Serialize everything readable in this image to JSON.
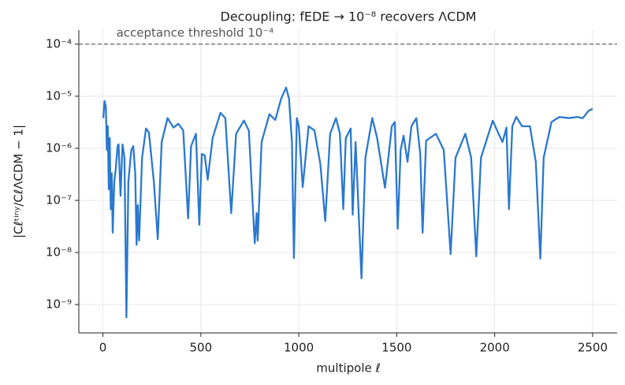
{
  "chart_data": {
    "type": "line",
    "title": "Decoupling: fEDE → 10⁻⁸ recovers ΛCDM",
    "xlabel": "multipole ℓ",
    "ylabel": "|Cℓᵗⁱⁿʸ/CℓΛCDM − 1|",
    "color": "#2a78d0",
    "log_y": true,
    "grid": true,
    "threshold": {
      "value": 0.0001,
      "label": "acceptance threshold 10⁻⁴",
      "color": "#555555"
    },
    "xlim": [
      -123,
      2625
    ],
    "ylim": [
      2.85e-10,
      0.000187
    ],
    "xticks": [
      0,
      500,
      1000,
      1500,
      2000,
      2500
    ],
    "yticks": [
      {
        "value": 1e-09,
        "label": "10⁻⁹"
      },
      {
        "value": 1e-08,
        "label": "10⁻⁸"
      },
      {
        "value": 1e-07,
        "label": "10⁻⁷"
      },
      {
        "value": 1e-06,
        "label": "10⁻⁶"
      },
      {
        "value": 1e-05,
        "label": "10⁻⁵"
      },
      {
        "value": 0.0001,
        "label": "10⁻⁴"
      }
    ],
    "x": [
      2,
      8,
      15,
      20,
      25,
      30,
      35,
      40,
      45,
      50,
      58,
      65,
      75,
      80,
      90,
      100,
      110,
      120,
      130,
      145,
      155,
      165,
      172,
      178,
      185,
      200,
      220,
      235,
      260,
      280,
      300,
      330,
      360,
      385,
      410,
      435,
      450,
      475,
      492,
      505,
      520,
      535,
      560,
      600,
      625,
      655,
      680,
      720,
      745,
      775,
      785,
      790,
      810,
      850,
      880,
      910,
      935,
      950,
      965,
      975,
      990,
      1000,
      1020,
      1050,
      1080,
      1110,
      1135,
      1160,
      1190,
      1210,
      1227,
      1240,
      1265,
      1275,
      1290,
      1320,
      1340,
      1375,
      1400,
      1440,
      1475,
      1490,
      1505,
      1520,
      1535,
      1555,
      1575,
      1600,
      1620,
      1632,
      1650,
      1700,
      1740,
      1775,
      1800,
      1850,
      1880,
      1906,
      1930,
      1990,
      2020,
      2040,
      2060,
      2073,
      2090,
      2110,
      2140,
      2180,
      2210,
      2233,
      2250,
      2290,
      2330,
      2380,
      2420,
      2450,
      2480,
      2500
    ],
    "values": [
      3.8e-06,
      8.1e-06,
      6.4e-06,
      9.3e-07,
      2.65e-06,
      1.63e-07,
      1.57e-06,
      6.8e-08,
      3.3e-07,
      2.4e-08,
      2.3e-07,
      3.9e-07,
      1.1e-06,
      1.19e-06,
      1.23e-07,
      1.19e-06,
      6.6e-07,
      5.7e-10,
      2.3e-07,
      9.3e-07,
      1.1e-06,
      3.3e-07,
      1.4e-08,
      8.1e-08,
      1.7e-08,
      6.6e-07,
      2.4e-06,
      2e-06,
      2.3e-07,
      1.8e-08,
      1.32e-06,
      3.8e-06,
      2.5e-06,
      2.95e-06,
      2.2e-06,
      4.5e-08,
      1.1e-06,
      1.9e-06,
      3.4e-08,
      7.8e-07,
      7.3e-07,
      2.5e-07,
      1.57e-06,
      4.8e-06,
      3.8e-06,
      5.7e-08,
      1.9e-06,
      3.4e-06,
      2.2e-06,
      1.5e-08,
      5.7e-08,
      1.7e-08,
      1.32e-06,
      4.5e-06,
      3.5e-06,
      9e-06,
      1.47e-05,
      9e-06,
      1.32e-06,
      7.8e-09,
      3.8e-06,
      2.65e-06,
      1.8e-07,
      2.65e-06,
      2.2e-06,
      5e-07,
      4e-08,
      1.9e-06,
      3.8e-06,
      1.9e-06,
      6.8e-08,
      1.57e-06,
      2.4e-06,
      5.3e-08,
      1.32e-06,
      3.2e-09,
      6.6e-07,
      3.8e-06,
      1.57e-06,
      1.75e-07,
      2.65e-06,
      3.2e-06,
      2.85e-08,
      9.3e-07,
      1.75e-06,
      5.5e-07,
      2.65e-06,
      3.8e-06,
      7.8e-07,
      2.4e-08,
      1.4e-06,
      1.9e-06,
      9.3e-07,
      9.3e-09,
      6.6e-07,
      1.9e-06,
      6.6e-07,
      8.4e-09,
      6.6e-07,
      3.4e-06,
      1.9e-06,
      1.32e-06,
      2.5e-06,
      6.8e-08,
      2.65e-06,
      4e-06,
      2.65e-06,
      2.65e-06,
      5.5e-07,
      7.6e-09,
      6.6e-07,
      3.2e-06,
      4e-06,
      3.8e-06,
      4e-06,
      3.8e-06,
      5.3e-06,
      5.7e-06
    ]
  }
}
